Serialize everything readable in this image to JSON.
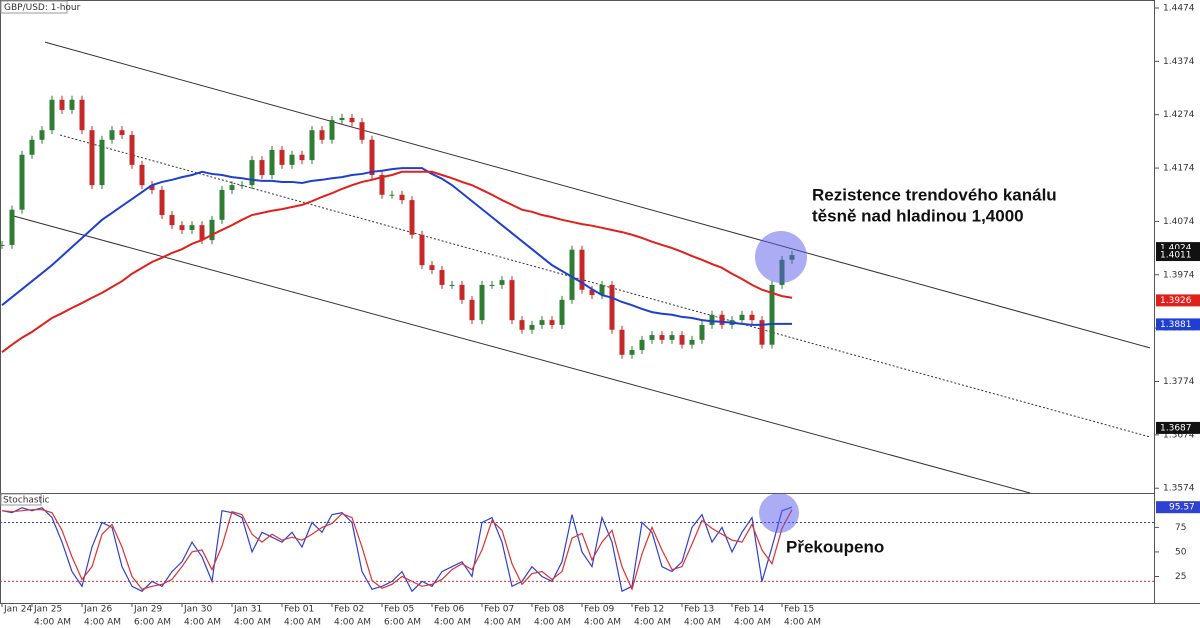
{
  "chart_data": [
    {
      "type": "candlestick",
      "title": "GBP/USD: 1-hour",
      "categories": [
        null,
        "Jan 24",
        null,
        null,
        "Jan 25",
        null,
        null,
        null,
        null,
        "Jan 26",
        null,
        null,
        null,
        null,
        "Jan 29",
        null,
        null,
        null,
        null,
        "Jan 30",
        null,
        null,
        null,
        null,
        "Jan 31",
        null,
        null,
        null,
        null,
        "Feb 01",
        null,
        null,
        null,
        null,
        "Feb 02",
        null,
        null,
        null,
        null,
        "Feb 05",
        null,
        null,
        null,
        null,
        "Feb 06",
        null,
        null,
        null,
        null,
        "Feb 07",
        null,
        null,
        null,
        null,
        "Feb 08",
        null,
        null,
        null,
        null,
        "Feb 09",
        null,
        null,
        null,
        null,
        "Feb 12",
        null,
        null,
        null,
        null,
        "Feb 13",
        null,
        null,
        null,
        null,
        "Feb 14",
        null,
        null,
        null,
        null,
        "Feb 15"
      ],
      "category_times": [
        null,
        null,
        null,
        null,
        "4:00 AM",
        null,
        null,
        null,
        null,
        "4:00 AM",
        null,
        null,
        null,
        null,
        "6:00 AM",
        null,
        null,
        null,
        null,
        "4:00 AM",
        null,
        null,
        null,
        null,
        "4:00 AM",
        null,
        null,
        null,
        null,
        "4:00 AM",
        null,
        null,
        null,
        null,
        "4:00 AM",
        null,
        null,
        null,
        null,
        "6:00 AM",
        null,
        null,
        null,
        null,
        "4:00 AM",
        null,
        null,
        null,
        null,
        "4:00 AM",
        null,
        null,
        null,
        null,
        "4:00 AM",
        null,
        null,
        null,
        null,
        "4:00 AM",
        null,
        null,
        null,
        null,
        "4:00 AM",
        null,
        null,
        null,
        null,
        "4:00 AM",
        null,
        null,
        null,
        null,
        "4:00 AM",
        null,
        null,
        null,
        null,
        "4:00 AM"
      ],
      "close": [
        1.403,
        1.4096,
        1.4199,
        1.4227,
        1.4245,
        1.4302,
        1.4283,
        1.4302,
        1.4245,
        1.4142,
        1.4227,
        1.4245,
        1.4236,
        1.418,
        1.4142,
        1.4133,
        1.4086,
        1.4067,
        1.4058,
        1.4067,
        1.4039,
        1.4077,
        1.4133,
        1.4142,
        1.4142,
        1.4189,
        1.4161,
        1.4208,
        1.418,
        1.4199,
        1.4189,
        1.4245,
        1.4227,
        1.4264,
        1.4268,
        1.426,
        1.4227,
        1.4161,
        1.4124,
        1.4124,
        1.4114,
        1.4049,
        1.3992,
        1.3983,
        1.3955,
        1.3955,
        1.3927,
        1.3889,
        1.3955,
        1.3955,
        1.3964,
        1.3889,
        1.3871,
        1.388,
        1.3889,
        1.388,
        1.3927,
        1.4021,
        1.3946,
        1.3936,
        1.3955,
        1.3871,
        1.3824,
        1.3833,
        1.3852,
        1.3861,
        1.3852,
        1.3861,
        1.3843,
        1.3852,
        1.388,
        1.3899,
        1.388,
        1.3889,
        1.3899,
        1.3889,
        1.3843,
        1.3955,
        1.4002,
        1.4011
      ],
      "up_color": "#2e7d32",
      "down_color": "#c62828",
      "overlays": [
        {
          "color": "#1f3fd1",
          "values": [
            1.3917,
            1.3932,
            1.3947,
            1.3962,
            1.3977,
            1.3992,
            1.4009,
            1.4026,
            1.4043,
            1.406,
            1.4077,
            1.409,
            1.4103,
            1.4116,
            1.4129,
            1.4142,
            1.4148,
            1.4152,
            1.4157,
            1.4161,
            1.4167,
            1.4163,
            1.4161,
            1.4157,
            1.4155,
            1.4152,
            1.415,
            1.415,
            1.4148,
            1.4148,
            1.4146,
            1.415,
            1.4152,
            1.4155,
            1.4157,
            1.4161,
            1.4163,
            1.4167,
            1.4169,
            1.4172,
            1.4174,
            1.4174,
            1.4174,
            1.4163,
            1.4154,
            1.4142,
            1.4127,
            1.4112,
            1.4097,
            1.4082,
            1.4067,
            1.4052,
            1.4037,
            1.4022,
            1.4007,
            1.3992,
            1.3981,
            1.397,
            1.3959,
            1.3947,
            1.3936,
            1.3931,
            1.3923,
            1.3917,
            1.391,
            1.3904,
            1.3901,
            1.3899,
            1.3895,
            1.3893,
            1.3889,
            1.3887,
            1.3886,
            1.3884,
            1.3882,
            1.388,
            1.388,
            1.3882,
            1.3882,
            1.3882
          ]
        },
        {
          "color": "#e0201b",
          "values": [
            1.3829,
            1.3843,
            1.3856,
            1.3867,
            1.388,
            1.3893,
            1.3902,
            1.3912,
            1.3921,
            1.3931,
            1.394,
            1.3951,
            1.3962,
            1.3976,
            1.3987,
            1.3998,
            1.4006,
            1.4015,
            1.4022,
            1.4032,
            1.4039,
            1.4049,
            1.4058,
            1.4067,
            1.4077,
            1.4086,
            1.409,
            1.4094,
            1.4097,
            1.4101,
            1.4105,
            1.4112,
            1.412,
            1.4127,
            1.4135,
            1.4142,
            1.4148,
            1.4152,
            1.4157,
            1.4161,
            1.4167,
            1.4167,
            1.4167,
            1.4167,
            1.4161,
            1.4155,
            1.4148,
            1.4142,
            1.4133,
            1.4124,
            1.4114,
            1.4105,
            1.4096,
            1.4092,
            1.4086,
            1.4082,
            1.4077,
            1.4073,
            1.4069,
            1.4066,
            1.4062,
            1.4058,
            1.4054,
            1.4049,
            1.4043,
            1.4036,
            1.403,
            1.4024,
            1.4017,
            1.4009,
            1.4002,
            1.3994,
            1.3987,
            1.3976,
            1.3966,
            1.3955,
            1.3946,
            1.394,
            1.3934,
            1.3931
          ]
        }
      ],
      "trend_lines": [
        {
          "x": [
            4.3,
            114.8
          ],
          "y": [
            1.441,
            1.3837
          ],
          "style": "solid"
        },
        {
          "x": [
            5.8,
            114.8
          ],
          "y": [
            1.4236,
            1.367
          ],
          "style": "dotted"
        },
        {
          "x": [
            0.8,
            102.8
          ],
          "y": [
            1.4086,
            1.3565
          ],
          "style": "solid"
        }
      ],
      "price_labels": [
        {
          "value": 1.4024,
          "color": "#111111"
        },
        {
          "value": 1.4011,
          "color": "#111111"
        },
        {
          "value": 1.3926,
          "color": "#e0201b"
        },
        {
          "value": 1.3881,
          "color": "#1f3fd1"
        },
        {
          "value": 1.3687,
          "color": "#111111"
        }
      ],
      "ylim": [
        1.3565,
        1.4489
      ],
      "yticks": [
        1.3574,
        1.3674,
        1.3774,
        1.3874,
        1.3974,
        1.4074,
        1.4174,
        1.4274,
        1.4374,
        1.4474
      ],
      "annotations": [
        "Rezistence trendového kanálu",
        "těsně nad hladinou 1,4000",
        "Překoupeno"
      ]
    },
    {
      "type": "line",
      "title": "Stochastic",
      "series": [
        {
          "color": "#3040d0",
          "values": [
            92,
            90,
            95,
            92,
            95,
            85,
            60,
            30,
            15,
            55,
            80,
            75,
            35,
            15,
            10,
            20,
            15,
            30,
            40,
            60,
            45,
            20,
            92,
            90,
            85,
            50,
            70,
            65,
            60,
            70,
            55,
            80,
            70,
            88,
            90,
            80,
            30,
            12,
            15,
            20,
            30,
            10,
            20,
            15,
            30,
            35,
            40,
            25,
            80,
            85,
            60,
            15,
            20,
            35,
            25,
            20,
            40,
            88,
            50,
            35,
            85,
            60,
            10,
            15,
            80,
            70,
            35,
            30,
            40,
            75,
            88,
            60,
            75,
            50,
            70,
            85,
            20,
            55,
            92,
            95.57
          ]
        },
        {
          "color": "#e03030",
          "values": [
            92,
            91,
            92,
            93,
            93,
            90,
            72,
            45,
            22,
            35,
            68,
            78,
            55,
            25,
            12,
            15,
            17,
            22,
            35,
            50,
            52,
            32,
            56,
            91,
            88,
            68,
            60,
            68,
            62,
            65,
            62,
            68,
            75,
            79,
            89,
            85,
            55,
            21,
            13,
            17,
            25,
            20,
            15,
            17,
            22,
            32,
            38,
            32,
            52,
            82,
            72,
            38,
            17,
            28,
            30,
            22,
            30,
            64,
            69,
            42,
            60,
            72,
            35,
            12,
            48,
            75,
            52,
            32,
            35,
            58,
            82,
            74,
            68,
            62,
            60,
            78,
            52,
            38,
            74,
            93
          ]
        }
      ],
      "levels": [
        {
          "value": 80,
          "color": "#3040d0"
        },
        {
          "value": 20,
          "color": "#e03030"
        }
      ],
      "ylim": [
        -2,
        109
      ],
      "yticks": [
        25,
        50,
        75
      ]
    }
  ]
}
